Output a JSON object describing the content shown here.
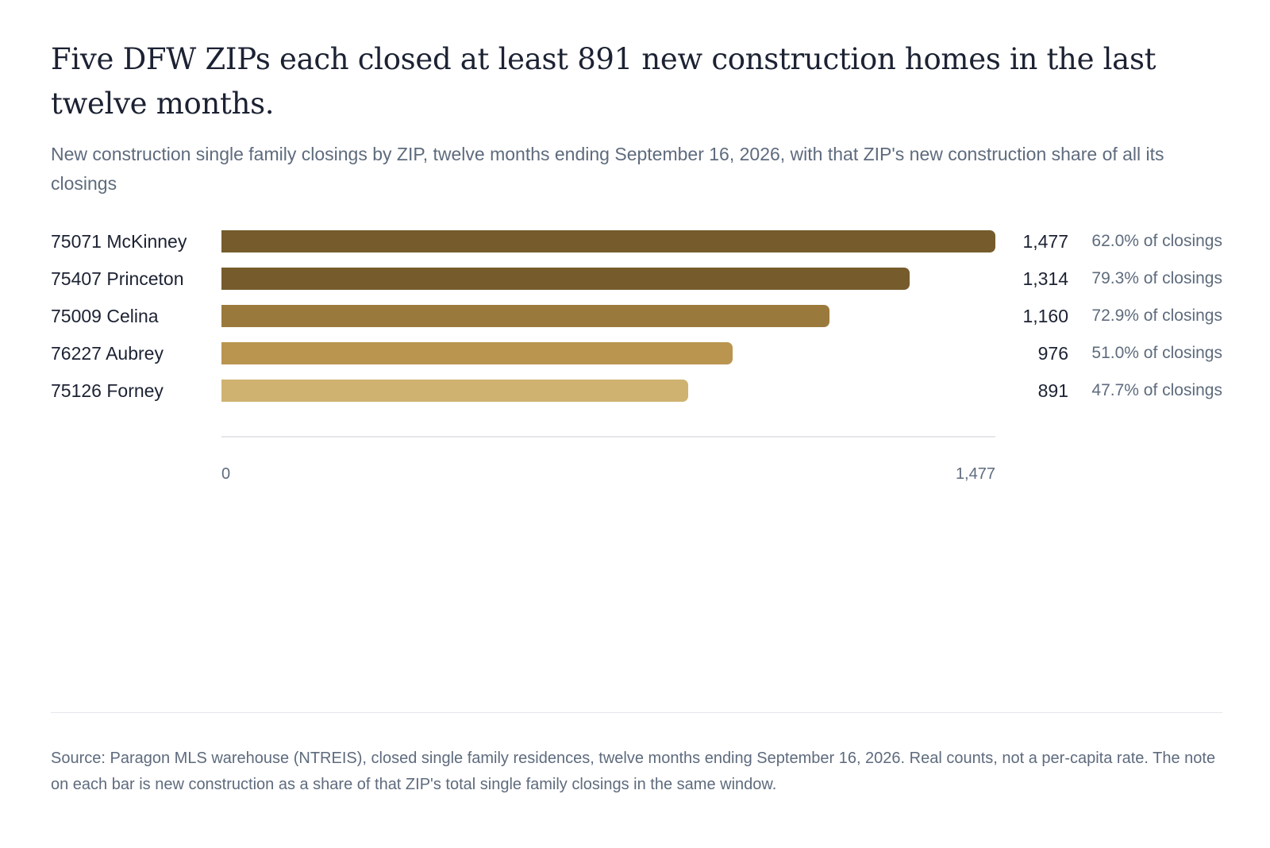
{
  "header": {
    "title": "Five DFW ZIPs each closed at least 891 new construction homes in the last twelve months.",
    "subtitle": "New construction single family closings by ZIP, twelve months ending September 16, 2026, with that ZIP's new construction share of all its closings"
  },
  "chart_data": {
    "type": "bar",
    "orientation": "horizontal",
    "categories": [
      "75071 McKinney",
      "75407 Princeton",
      "75009 Celina",
      "76227 Aubrey",
      "75126 Forney"
    ],
    "values": [
      1477,
      1314,
      1160,
      976,
      891
    ],
    "value_labels": [
      "1,477",
      "1,314",
      "1,160",
      "976",
      "891"
    ],
    "share_labels": [
      "62.0% of closings",
      "79.3% of closings",
      "72.9% of closings",
      "51.0% of closings",
      "47.7% of closings"
    ],
    "colors": [
      "#765c2c",
      "#765c2c",
      "#9a7a3c",
      "#b9954f",
      "#cfb270"
    ],
    "xlim": [
      0,
      1477
    ],
    "x_ticks": [
      "0",
      "1,477"
    ],
    "grid": false,
    "title": "Five DFW ZIPs each closed at least 891 new construction homes in the last twelve months.",
    "subtitle": "New construction single family closings by ZIP, twelve months ending September 16, 2026, with that ZIP's new construction share of all its closings"
  },
  "footer": {
    "source": "Source: Paragon MLS warehouse (NTREIS), closed single family residences, twelve months ending September 16, 2026. Real counts, not a per-capita rate. The note on each bar is new construction as a share of that ZIP's total single family closings in the same window."
  }
}
